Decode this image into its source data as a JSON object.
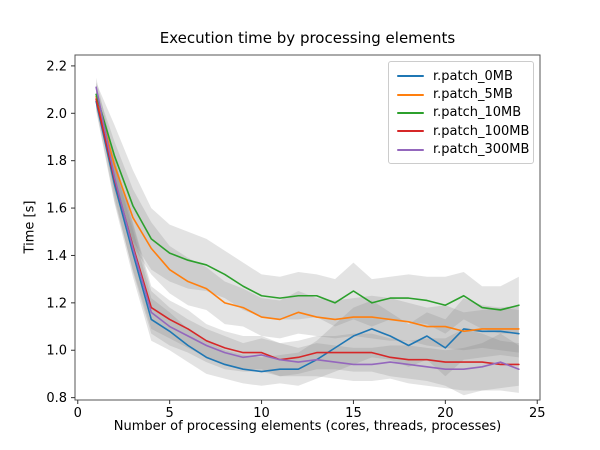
{
  "chart_data": {
    "type": "line",
    "title": "Execution time by processing elements",
    "xlabel": "Number of processing elements (cores, threads, processes)",
    "ylabel": "Time [s]",
    "grid": false,
    "legend_position": "upper right",
    "band_color": "#808080",
    "band_opacity": 0.22,
    "axis_color": "#555555",
    "tick_color": "#333333",
    "xlim": [
      -0.15,
      25.15
    ],
    "ylim": [
      0.79,
      2.246
    ],
    "xticks": [
      0,
      5,
      10,
      15,
      20,
      25
    ],
    "xticklabels": [
      "0",
      "5",
      "10",
      "15",
      "20",
      "25"
    ],
    "yticks": [
      0.8,
      1.0,
      1.2,
      1.4,
      1.6,
      1.8,
      2.0,
      2.2
    ],
    "yticklabels": [
      "0.8",
      "1.0",
      "1.2",
      "1.4",
      "1.6",
      "1.8",
      "2.0",
      "2.2"
    ],
    "x": [
      1,
      2,
      3,
      4,
      5,
      6,
      7,
      8,
      9,
      10,
      11,
      12,
      13,
      14,
      15,
      16,
      17,
      18,
      19,
      20,
      21,
      22,
      23,
      24
    ],
    "series": [
      {
        "name": "r.patch_0MB",
        "color": "#1f77b4",
        "values": [
          2.05,
          1.7,
          1.41,
          1.13,
          1.08,
          1.02,
          0.97,
          0.94,
          0.92,
          0.91,
          0.92,
          0.92,
          0.96,
          1.01,
          1.06,
          1.09,
          1.06,
          1.02,
          1.06,
          1.01,
          1.09,
          1.08,
          1.08,
          1.07
        ],
        "std": [
          0.04,
          0.08,
          0.1,
          0.09,
          0.08,
          0.07,
          0.07,
          0.06,
          0.06,
          0.06,
          0.06,
          0.07,
          0.08,
          0.1,
          0.12,
          0.12,
          0.1,
          0.09,
          0.1,
          0.12,
          0.13,
          0.11,
          0.1,
          0.1
        ]
      },
      {
        "name": "r.patch_5MB",
        "color": "#ff7f0e",
        "values": [
          2.07,
          1.78,
          1.56,
          1.43,
          1.34,
          1.29,
          1.26,
          1.2,
          1.18,
          1.14,
          1.13,
          1.16,
          1.14,
          1.13,
          1.14,
          1.14,
          1.13,
          1.12,
          1.1,
          1.1,
          1.08,
          1.09,
          1.09,
          1.09
        ],
        "std": [
          0.04,
          0.1,
          0.12,
          0.11,
          0.1,
          0.1,
          0.09,
          0.09,
          0.08,
          0.08,
          0.08,
          0.09,
          0.08,
          0.08,
          0.08,
          0.09,
          0.09,
          0.08,
          0.08,
          0.09,
          0.08,
          0.08,
          0.09,
          0.1
        ]
      },
      {
        "name": "r.patch_10MB",
        "color": "#2ca02c",
        "values": [
          2.08,
          1.82,
          1.61,
          1.47,
          1.41,
          1.38,
          1.36,
          1.32,
          1.27,
          1.23,
          1.22,
          1.23,
          1.23,
          1.2,
          1.25,
          1.2,
          1.22,
          1.22,
          1.21,
          1.19,
          1.23,
          1.18,
          1.17,
          1.19
        ],
        "std": [
          0.05,
          0.13,
          0.15,
          0.13,
          0.12,
          0.12,
          0.11,
          0.1,
          0.1,
          0.09,
          0.09,
          0.1,
          0.09,
          0.1,
          0.12,
          0.1,
          0.09,
          0.1,
          0.1,
          0.12,
          0.1,
          0.09,
          0.1,
          0.12
        ]
      },
      {
        "name": "r.patch_100MB",
        "color": "#d62728",
        "values": [
          2.06,
          1.72,
          1.44,
          1.18,
          1.13,
          1.09,
          1.04,
          1.01,
          0.99,
          0.99,
          0.96,
          0.97,
          0.99,
          0.99,
          0.99,
          0.99,
          0.97,
          0.96,
          0.96,
          0.95,
          0.95,
          0.95,
          0.94,
          0.94
        ],
        "std": [
          0.04,
          0.09,
          0.1,
          0.09,
          0.08,
          0.08,
          0.07,
          0.07,
          0.07,
          0.07,
          0.07,
          0.07,
          0.07,
          0.07,
          0.08,
          0.08,
          0.08,
          0.08,
          0.09,
          0.1,
          0.14,
          0.12,
          0.1,
          0.09
        ]
      },
      {
        "name": "r.patch_300MB",
        "color": "#9467bd",
        "values": [
          2.11,
          1.73,
          1.43,
          1.16,
          1.1,
          1.06,
          1.02,
          0.99,
          0.97,
          0.98,
          0.96,
          0.95,
          0.96,
          0.95,
          0.94,
          0.94,
          0.95,
          0.94,
          0.93,
          0.92,
          0.92,
          0.93,
          0.95,
          0.92
        ],
        "std": [
          0.04,
          0.08,
          0.1,
          0.09,
          0.08,
          0.07,
          0.07,
          0.07,
          0.06,
          0.07,
          0.07,
          0.06,
          0.07,
          0.07,
          0.07,
          0.07,
          0.07,
          0.08,
          0.08,
          0.08,
          0.09,
          0.1,
          0.12,
          0.1
        ]
      }
    ]
  }
}
